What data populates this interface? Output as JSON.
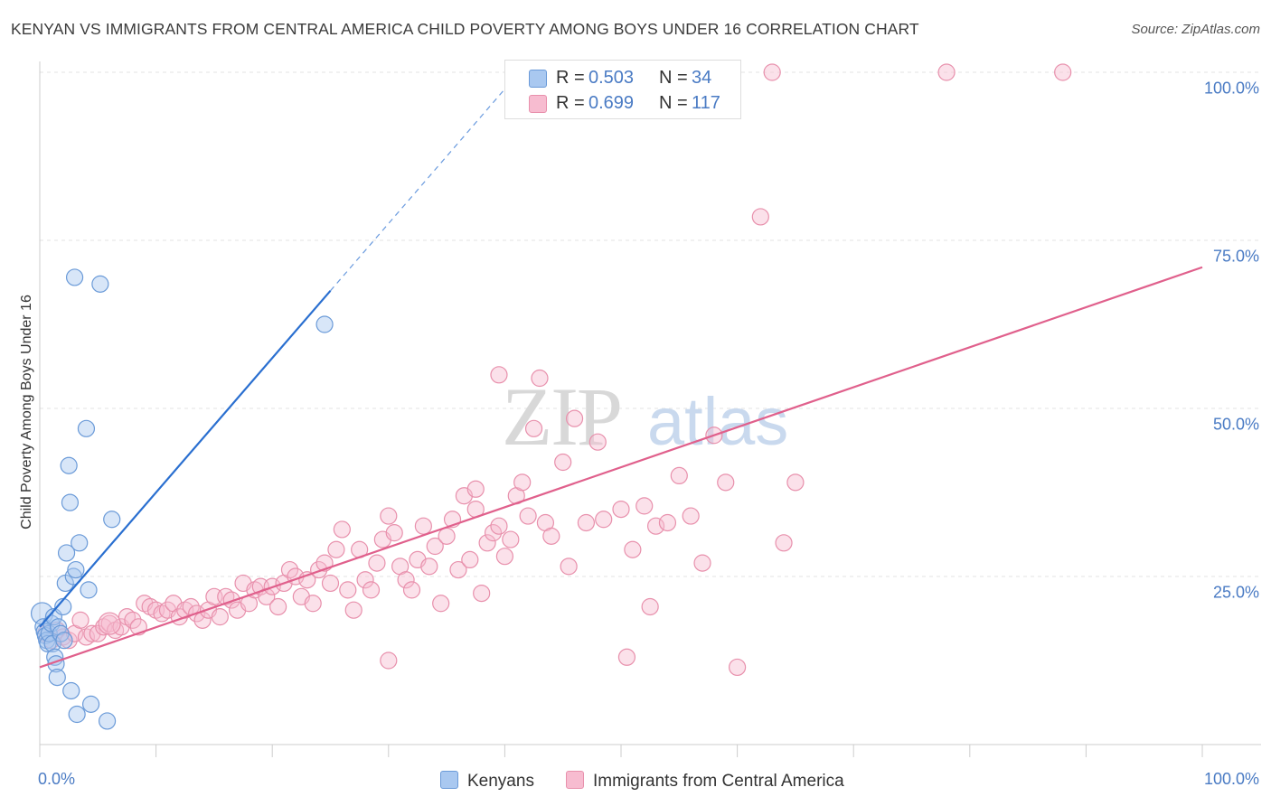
{
  "chart_data": {
    "type": "scatter",
    "title": "KENYAN VS IMMIGRANTS FROM CENTRAL AMERICA CHILD POVERTY AMONG BOYS UNDER 16 CORRELATION CHART",
    "source": "Source: ZipAtlas.com",
    "watermark": "ZIPatlas",
    "ylabel": "Child Poverty Among Boys Under 16",
    "xlim": [
      0,
      100
    ],
    "ylim": [
      0,
      100
    ],
    "x_tick_labels": [
      "0.0%",
      "100.0%"
    ],
    "y_tick_labels": [
      "100.0%",
      "75.0%",
      "50.0%",
      "25.0%"
    ],
    "y_ticks": [
      100,
      75,
      50,
      25
    ],
    "legend": [
      {
        "r_label": "R =",
        "r": "0.503",
        "n_label": "N =",
        "n": "34",
        "color": "#a9c8f0",
        "stroke": "#6a9ad8"
      },
      {
        "r_label": "R =",
        "r": "0.699",
        "n_label": "N =",
        "n": "117",
        "color": "#f7bcd0",
        "stroke": "#e890ac"
      }
    ],
    "series": [
      {
        "name": "Kenyans",
        "color": "#a9c8f0",
        "stroke": "#6a9ad8",
        "trend": {
          "x0": 0,
          "y0": 17.5,
          "x1": 25,
          "y1": 67.5,
          "dash_to_x": 40.5,
          "color": "#2a6fd0"
        },
        "points": [
          [
            0.2,
            19.5
          ],
          [
            0.3,
            17.5
          ],
          [
            0.4,
            16.8
          ],
          [
            0.5,
            16.2
          ],
          [
            0.6,
            15.5
          ],
          [
            0.7,
            15.0
          ],
          [
            0.8,
            16.5
          ],
          [
            1.0,
            18.0
          ],
          [
            1.1,
            15.0
          ],
          [
            1.2,
            19.0
          ],
          [
            1.3,
            13.0
          ],
          [
            1.4,
            12.0
          ],
          [
            1.5,
            10.0
          ],
          [
            1.6,
            17.5
          ],
          [
            1.8,
            16.5
          ],
          [
            2.0,
            20.5
          ],
          [
            2.1,
            15.5
          ],
          [
            2.2,
            24.0
          ],
          [
            2.3,
            28.5
          ],
          [
            2.5,
            41.5
          ],
          [
            2.6,
            36.0
          ],
          [
            2.7,
            8.0
          ],
          [
            2.9,
            25.0
          ],
          [
            3.1,
            26.0
          ],
          [
            3.2,
            4.5
          ],
          [
            3.4,
            30.0
          ],
          [
            4.0,
            47.0
          ],
          [
            4.2,
            23.0
          ],
          [
            4.4,
            6.0
          ],
          [
            5.2,
            68.5
          ],
          [
            5.8,
            3.5
          ],
          [
            6.2,
            33.5
          ],
          [
            3.0,
            69.5
          ],
          [
            24.5,
            62.5
          ]
        ],
        "sizes": [
          12,
          9,
          9,
          9,
          9,
          9,
          9,
          9,
          9,
          9,
          9,
          9,
          9,
          9,
          9,
          9,
          9,
          9,
          9,
          9,
          9,
          9,
          9,
          9,
          9,
          9,
          9,
          9,
          9,
          9,
          9,
          9,
          9,
          9
        ]
      },
      {
        "name": "Immigrants from Central America",
        "color": "#f7bcd0",
        "stroke": "#e890ac",
        "trend": {
          "x0": 0,
          "y0": 11.5,
          "x1": 100,
          "y1": 71.0,
          "color": "#e0608c"
        },
        "points": [
          [
            0.5,
            16.5
          ],
          [
            1.0,
            15.5
          ],
          [
            1.5,
            17.0
          ],
          [
            2.0,
            16.0
          ],
          [
            2.5,
            15.5
          ],
          [
            3.0,
            16.5
          ],
          [
            3.5,
            18.5
          ],
          [
            4.0,
            16.0
          ],
          [
            4.5,
            16.5
          ],
          [
            5.0,
            16.5
          ],
          [
            5.5,
            17.5
          ],
          [
            6.0,
            18.0
          ],
          [
            6.5,
            17.0
          ],
          [
            7.0,
            17.5
          ],
          [
            7.5,
            19.0
          ],
          [
            8.0,
            18.5
          ],
          [
            8.5,
            17.5
          ],
          [
            9.0,
            21.0
          ],
          [
            9.5,
            20.5
          ],
          [
            10.0,
            20.0
          ],
          [
            10.5,
            19.5
          ],
          [
            11.0,
            20.0
          ],
          [
            11.5,
            21.0
          ],
          [
            12.0,
            19.0
          ],
          [
            12.5,
            20.0
          ],
          [
            13.0,
            20.5
          ],
          [
            13.5,
            19.5
          ],
          [
            14.0,
            18.5
          ],
          [
            14.5,
            20.0
          ],
          [
            15.0,
            22.0
          ],
          [
            15.5,
            19.0
          ],
          [
            16.0,
            22.0
          ],
          [
            16.5,
            21.5
          ],
          [
            17.0,
            20.0
          ],
          [
            17.5,
            24.0
          ],
          [
            18.0,
            21.0
          ],
          [
            18.5,
            23.0
          ],
          [
            19.0,
            23.5
          ],
          [
            19.5,
            22.0
          ],
          [
            20.0,
            23.5
          ],
          [
            20.5,
            20.5
          ],
          [
            21.0,
            24.0
          ],
          [
            21.5,
            26.0
          ],
          [
            22.0,
            25.0
          ],
          [
            22.5,
            22.0
          ],
          [
            23.0,
            24.5
          ],
          [
            23.5,
            21.0
          ],
          [
            24.0,
            26.0
          ],
          [
            24.5,
            27.0
          ],
          [
            25.0,
            24.0
          ],
          [
            25.5,
            29.0
          ],
          [
            26.0,
            32.0
          ],
          [
            26.5,
            23.0
          ],
          [
            27.0,
            20.0
          ],
          [
            27.5,
            29.0
          ],
          [
            28.0,
            24.5
          ],
          [
            28.5,
            23.0
          ],
          [
            29.0,
            27.0
          ],
          [
            29.5,
            30.5
          ],
          [
            30.0,
            34.0
          ],
          [
            30.5,
            31.5
          ],
          [
            31.0,
            26.5
          ],
          [
            31.5,
            24.5
          ],
          [
            32.0,
            23.0
          ],
          [
            32.5,
            27.5
          ],
          [
            33.0,
            32.5
          ],
          [
            33.5,
            26.5
          ],
          [
            34.0,
            29.5
          ],
          [
            34.5,
            21.0
          ],
          [
            35.0,
            31.0
          ],
          [
            35.5,
            33.5
          ],
          [
            36.0,
            26.0
          ],
          [
            36.5,
            37.0
          ],
          [
            37.0,
            27.5
          ],
          [
            37.5,
            35.0
          ],
          [
            38.0,
            22.5
          ],
          [
            38.5,
            30.0
          ],
          [
            39.0,
            31.5
          ],
          [
            39.5,
            32.5
          ],
          [
            40.0,
            28.0
          ],
          [
            40.5,
            30.5
          ],
          [
            41.0,
            37.0
          ],
          [
            41.5,
            39.0
          ],
          [
            42.0,
            34.0
          ],
          [
            42.5,
            47.0
          ],
          [
            43.0,
            54.5
          ],
          [
            43.5,
            33.0
          ],
          [
            44.0,
            31.0
          ],
          [
            45.0,
            42.0
          ],
          [
            46.0,
            48.5
          ],
          [
            47.0,
            33.0
          ],
          [
            48.0,
            45.0
          ],
          [
            50.0,
            35.0
          ],
          [
            51.0,
            29.0
          ],
          [
            52.0,
            35.5
          ],
          [
            53.0,
            32.5
          ],
          [
            54.0,
            33.0
          ],
          [
            55.0,
            40.0
          ],
          [
            56.0,
            34.0
          ],
          [
            57.0,
            27.0
          ],
          [
            58.0,
            46.0
          ],
          [
            59.0,
            39.0
          ],
          [
            60.0,
            11.5
          ],
          [
            62.0,
            78.5
          ],
          [
            63.0,
            100.0
          ],
          [
            64.0,
            30.0
          ],
          [
            65.0,
            39.0
          ],
          [
            50.5,
            13.0
          ],
          [
            45.5,
            26.5
          ],
          [
            48.5,
            33.5
          ],
          [
            52.5,
            20.5
          ],
          [
            39.5,
            55.0
          ],
          [
            37.5,
            38.0
          ],
          [
            30.0,
            12.5
          ],
          [
            78.0,
            100.0
          ],
          [
            88.0,
            100.0
          ],
          [
            6.0,
            18.0
          ]
        ],
        "sizes": [
          9,
          9,
          9,
          9,
          9,
          9,
          9,
          9,
          9,
          9,
          9,
          9,
          9,
          9,
          9,
          9,
          9,
          9,
          9,
          9,
          9,
          9,
          9,
          9,
          9,
          9,
          9,
          9,
          9,
          9,
          9,
          9,
          9,
          9,
          9,
          9,
          9,
          9,
          9,
          9,
          9,
          9,
          9,
          9,
          9,
          9,
          9,
          9,
          9,
          9,
          9,
          9,
          9,
          9,
          9,
          9,
          9,
          9,
          9,
          9,
          9,
          9,
          9,
          9,
          9,
          9,
          9,
          9,
          9,
          9,
          9,
          9,
          9,
          9,
          9,
          9,
          9,
          9,
          9,
          9,
          9,
          9,
          9,
          9,
          9,
          9,
          9,
          9,
          9,
          9,
          9,
          9,
          9,
          9,
          9,
          9,
          9,
          9,
          9,
          9,
          9,
          9,
          9,
          9,
          9,
          9,
          9,
          9,
          9,
          9,
          9,
          9,
          9,
          9,
          9,
          9,
          12
        ]
      }
    ]
  }
}
